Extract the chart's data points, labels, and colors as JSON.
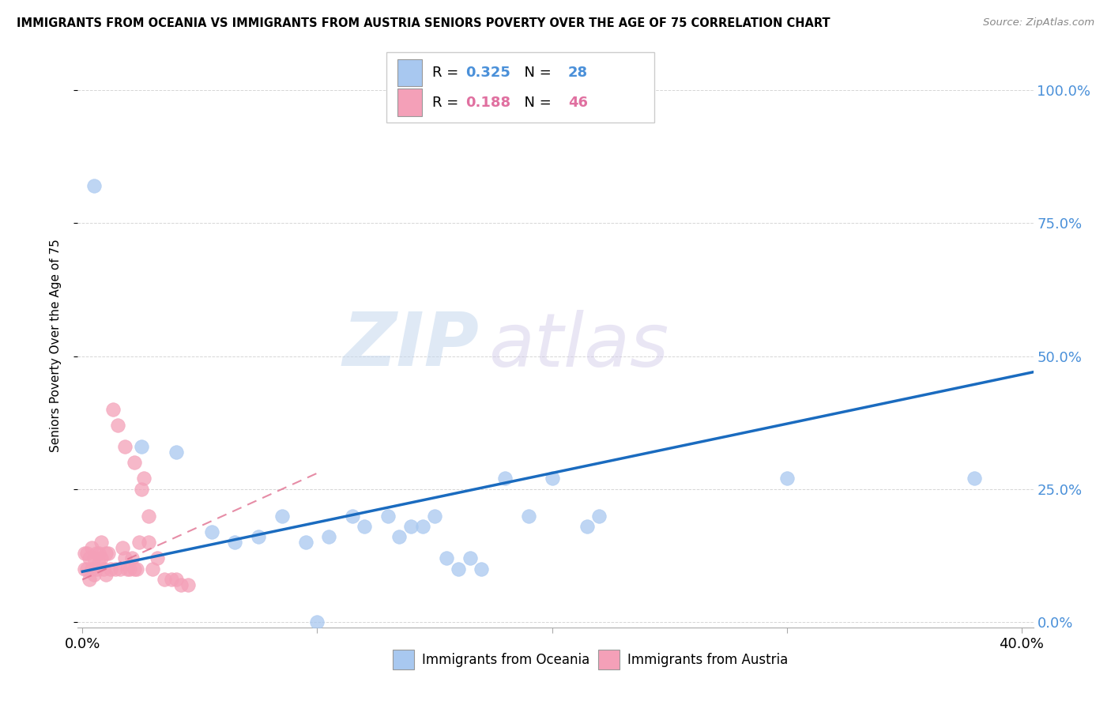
{
  "title": "IMMIGRANTS FROM OCEANIA VS IMMIGRANTS FROM AUSTRIA SENIORS POVERTY OVER THE AGE OF 75 CORRELATION CHART",
  "source": "Source: ZipAtlas.com",
  "ylabel": "Seniors Poverty Over the Age of 75",
  "ytick_labels": [
    "0.0%",
    "25.0%",
    "50.0%",
    "75.0%",
    "100.0%"
  ],
  "ytick_values": [
    0.0,
    0.25,
    0.5,
    0.75,
    1.0
  ],
  "xlim": [
    -0.002,
    0.405
  ],
  "ylim": [
    -0.01,
    1.05
  ],
  "watermark_zip": "ZIP",
  "watermark_atlas": "atlas",
  "R_oceania": 0.325,
  "N_oceania": 28,
  "R_austria": 0.188,
  "N_austria": 46,
  "color_oceania": "#a8c8f0",
  "color_austria": "#f4a0b8",
  "trendline_oceania_color": "#1a6bbf",
  "trendline_austria_color": "#e07090",
  "trendline_oceania_x0": 0.0,
  "trendline_oceania_y0": 0.095,
  "trendline_oceania_x1": 0.405,
  "trendline_oceania_y1": 0.47,
  "trendline_austria_x0": 0.0,
  "trendline_austria_y0": 0.08,
  "trendline_austria_x1": 0.1,
  "trendline_austria_y1": 0.28,
  "scatter_oceania_x": [
    0.005,
    0.025,
    0.04,
    0.055,
    0.065,
    0.075,
    0.085,
    0.095,
    0.1,
    0.105,
    0.115,
    0.12,
    0.13,
    0.135,
    0.14,
    0.145,
    0.15,
    0.155,
    0.16,
    0.165,
    0.17,
    0.18,
    0.19,
    0.2,
    0.215,
    0.22,
    0.3,
    0.38
  ],
  "scatter_oceania_y": [
    0.82,
    0.33,
    0.32,
    0.17,
    0.15,
    0.16,
    0.2,
    0.15,
    0.0,
    0.16,
    0.2,
    0.18,
    0.2,
    0.16,
    0.18,
    0.18,
    0.2,
    0.12,
    0.1,
    0.12,
    0.1,
    0.27,
    0.2,
    0.27,
    0.18,
    0.2,
    0.27,
    0.27
  ],
  "scatter_austria_x": [
    0.001,
    0.001,
    0.002,
    0.002,
    0.003,
    0.003,
    0.004,
    0.004,
    0.005,
    0.005,
    0.006,
    0.006,
    0.007,
    0.007,
    0.008,
    0.008,
    0.009,
    0.01,
    0.01,
    0.011,
    0.012,
    0.013,
    0.014,
    0.015,
    0.016,
    0.017,
    0.018,
    0.018,
    0.019,
    0.02,
    0.021,
    0.022,
    0.022,
    0.023,
    0.024,
    0.025,
    0.026,
    0.028,
    0.028,
    0.03,
    0.032,
    0.035,
    0.038,
    0.04,
    0.042,
    0.045
  ],
  "scatter_austria_y": [
    0.1,
    0.13,
    0.1,
    0.13,
    0.08,
    0.12,
    0.1,
    0.14,
    0.09,
    0.12,
    0.1,
    0.13,
    0.11,
    0.13,
    0.12,
    0.15,
    0.1,
    0.09,
    0.13,
    0.13,
    0.1,
    0.4,
    0.1,
    0.37,
    0.1,
    0.14,
    0.12,
    0.33,
    0.1,
    0.1,
    0.12,
    0.3,
    0.1,
    0.1,
    0.15,
    0.25,
    0.27,
    0.15,
    0.2,
    0.1,
    0.12,
    0.08,
    0.08,
    0.08,
    0.07,
    0.07
  ],
  "background_color": "#ffffff",
  "grid_color": "#cccccc"
}
